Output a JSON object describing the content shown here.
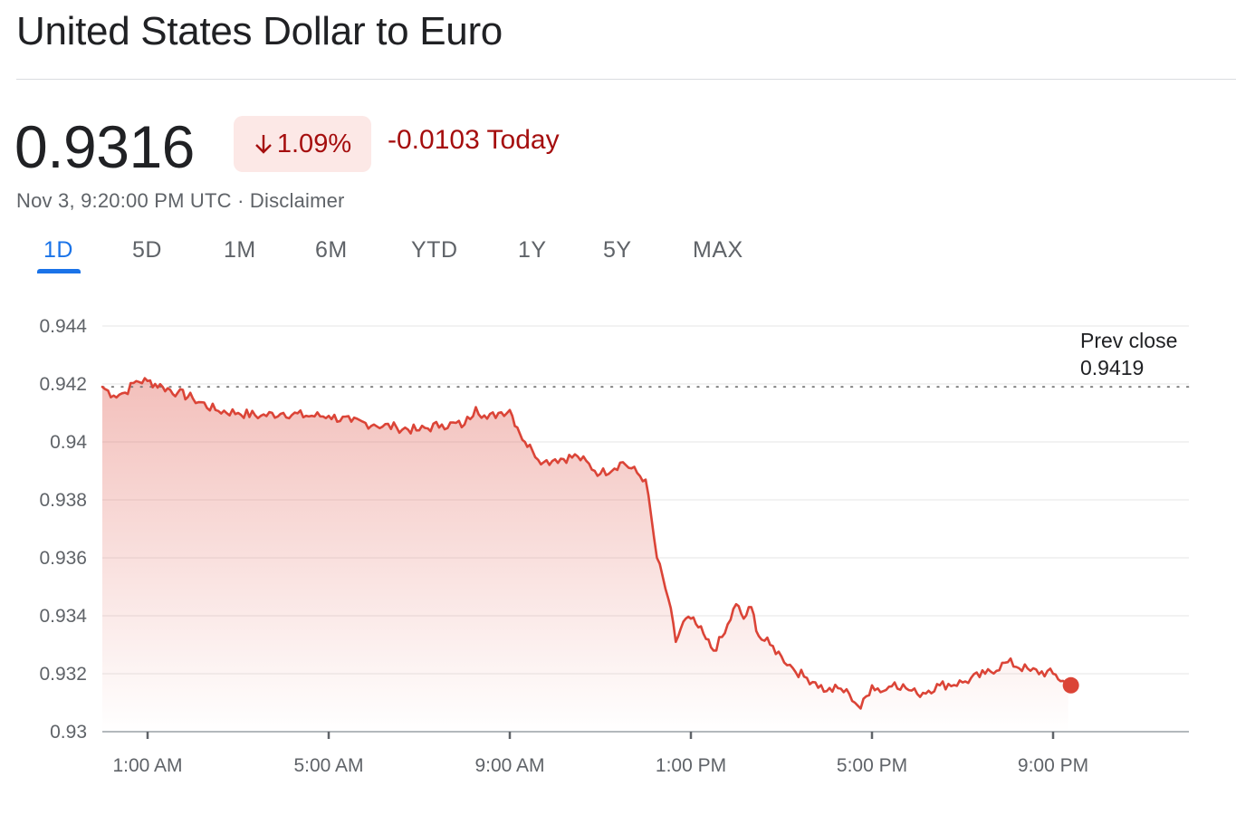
{
  "header": {
    "title": "United States Dollar to Euro"
  },
  "quote": {
    "price": "0.9316",
    "percent_change": "1.09%",
    "abs_change_today": "-0.0103 Today",
    "timestamp": "Nov 3, 9:20:00 PM UTC",
    "separator": "·",
    "disclaimer": "Disclaimer"
  },
  "colors": {
    "accent": "#1a73e8",
    "negative": "#a50e0e",
    "negative_bg": "#fce8e6",
    "line": "#db4437"
  },
  "icons": {
    "change_direction": "arrow-down-icon"
  },
  "tabs": [
    {
      "label": "1D",
      "active": true
    },
    {
      "label": "5D",
      "active": false
    },
    {
      "label": "1M",
      "active": false
    },
    {
      "label": "6M",
      "active": false
    },
    {
      "label": "YTD",
      "active": false
    },
    {
      "label": "1Y",
      "active": false
    },
    {
      "label": "5Y",
      "active": false
    },
    {
      "label": "MAX",
      "active": false
    }
  ],
  "chart_data": {
    "type": "area",
    "title": "",
    "xlabel": "",
    "ylabel": "",
    "ylim": [
      0.93,
      0.944
    ],
    "xlim": [
      "00:00",
      "24:00"
    ],
    "grid": true,
    "y_ticks": [
      "0.944",
      "0.942",
      "0.94",
      "0.938",
      "0.936",
      "0.934",
      "0.932",
      "0.93"
    ],
    "x_ticks": [
      "1:00 AM",
      "5:00 AM",
      "9:00 AM",
      "1:00 PM",
      "5:00 PM",
      "9:00 PM"
    ],
    "reference_line": {
      "label": "Prev close",
      "value_label": "0.9419",
      "value": 0.9419
    },
    "last_point_marker": {
      "time": "21:20",
      "value": 0.9316
    },
    "series": [
      {
        "x": [
          "00:00",
          "00:15",
          "00:30",
          "00:45",
          "01:00",
          "01:20",
          "01:40",
          "02:00",
          "02:30",
          "03:00",
          "03:30",
          "04:00",
          "04:30",
          "05:00",
          "05:30",
          "06:00",
          "06:30",
          "07:00",
          "07:30",
          "08:00",
          "08:15",
          "08:30",
          "08:45",
          "09:00",
          "09:10",
          "09:20",
          "09:30",
          "09:45",
          "10:00",
          "10:30",
          "11:00",
          "11:30",
          "12:00",
          "12:15",
          "12:30",
          "12:40",
          "12:50",
          "13:00",
          "13:10",
          "13:20",
          "13:30",
          "13:45",
          "14:00",
          "14:10",
          "14:20",
          "14:30",
          "14:45",
          "15:00",
          "15:15",
          "15:30",
          "15:45",
          "16:00",
          "16:15",
          "16:30",
          "16:45",
          "17:00",
          "17:15",
          "17:30",
          "17:45",
          "18:00",
          "18:30",
          "19:00",
          "19:30",
          "20:00",
          "20:30",
          "21:00",
          "21:20"
        ],
        "y": [
          0.9419,
          0.9416,
          0.9417,
          0.9421,
          0.9421,
          0.9419,
          0.9417,
          0.9415,
          0.9411,
          0.941,
          0.9409,
          0.941,
          0.9409,
          0.9409,
          0.9407,
          0.9406,
          0.9405,
          0.9404,
          0.9406,
          0.9406,
          0.9412,
          0.9408,
          0.941,
          0.9411,
          0.9405,
          0.94,
          0.9397,
          0.9393,
          0.9394,
          0.9395,
          0.9389,
          0.9393,
          0.9387,
          0.936,
          0.9346,
          0.9331,
          0.9338,
          0.9339,
          0.9336,
          0.9332,
          0.9328,
          0.9334,
          0.9344,
          0.9339,
          0.9343,
          0.9333,
          0.933,
          0.9326,
          0.9322,
          0.9319,
          0.9317,
          0.9314,
          0.9315,
          0.9313,
          0.9308,
          0.9316,
          0.9314,
          0.9317,
          0.9315,
          0.9313,
          0.9316,
          0.9317,
          0.932,
          0.9324,
          0.9321,
          0.932,
          0.9316
        ]
      }
    ]
  }
}
